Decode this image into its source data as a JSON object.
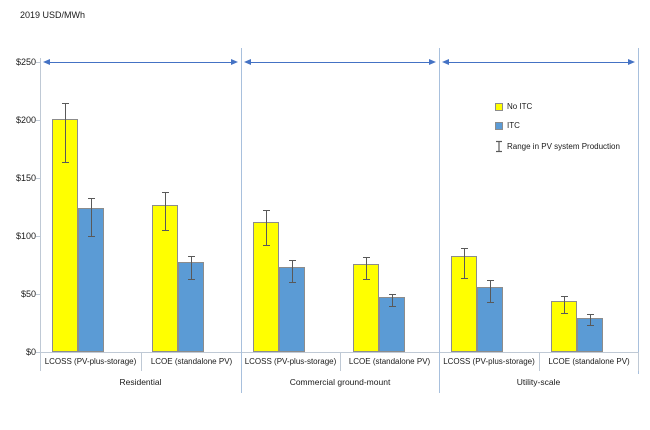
{
  "chart_data": {
    "type": "bar",
    "title": "2019 USD/MWh",
    "ylabel": "2019 USD/MWh",
    "ylim": [
      0,
      250
    ],
    "grid": false,
    "legend_position": "inside-right",
    "y_ticks": [
      {
        "label": "$0",
        "value": 0
      },
      {
        "label": "$50",
        "value": 50
      },
      {
        "label": "$100",
        "value": 100
      },
      {
        "label": "$150",
        "value": 150
      },
      {
        "label": "$200",
        "value": 200
      },
      {
        "label": "$250",
        "value": 250
      }
    ],
    "series_names": [
      "No ITC",
      "ITC"
    ],
    "groups": [
      {
        "label": "Residential",
        "categories": [
          {
            "label": "LCOSS (PV-plus-storage)",
            "no_itc": {
              "value": 201,
              "err_low": 164,
              "err_high": 215
            },
            "itc": {
              "value": 124,
              "err_low": 100,
              "err_high": 133
            }
          },
          {
            "label": "LCOE (standalone PV)",
            "no_itc": {
              "value": 127,
              "err_low": 105,
              "err_high": 138
            },
            "itc": {
              "value": 78,
              "err_low": 63,
              "err_high": 83
            }
          }
        ]
      },
      {
        "label": "Commercial ground-mount",
        "categories": [
          {
            "label": "LCOSS (PV-plus-storage)",
            "no_itc": {
              "value": 112,
              "err_low": 92,
              "err_high": 122
            },
            "itc": {
              "value": 73,
              "err_low": 60,
              "err_high": 79
            }
          },
          {
            "label": "LCOE (standalone PV)",
            "no_itc": {
              "value": 76,
              "err_low": 63,
              "err_high": 82
            },
            "itc": {
              "value": 47,
              "err_low": 40,
              "err_high": 50
            }
          }
        ]
      },
      {
        "label": "Utility-scale",
        "categories": [
          {
            "label": "LCOSS (PV-plus-storage)",
            "no_itc": {
              "value": 83,
              "err_low": 64,
              "err_high": 90
            },
            "itc": {
              "value": 56,
              "err_low": 43,
              "err_high": 62
            }
          },
          {
            "label": "LCOE (standalone PV)",
            "no_itc": {
              "value": 44,
              "err_low": 34,
              "err_high": 48
            },
            "itc": {
              "value": 29,
              "err_low": 23,
              "err_high": 33
            }
          }
        ]
      }
    ],
    "legend": [
      {
        "label": "No ITC"
      },
      {
        "label": "ITC"
      },
      {
        "label": "Range in PV system Production"
      }
    ],
    "annotations": {
      "range_arrows_at_value": 250
    },
    "colors": {
      "no_itc": "#FFFF00",
      "itc": "#5B9BD5",
      "bar_border": "#8c8c8c",
      "error_bar": "#595959",
      "arrow": "#4472C4",
      "divider": "#A8C0DD",
      "axis": "#BFC9D5",
      "text": "#1a1a1a"
    }
  }
}
